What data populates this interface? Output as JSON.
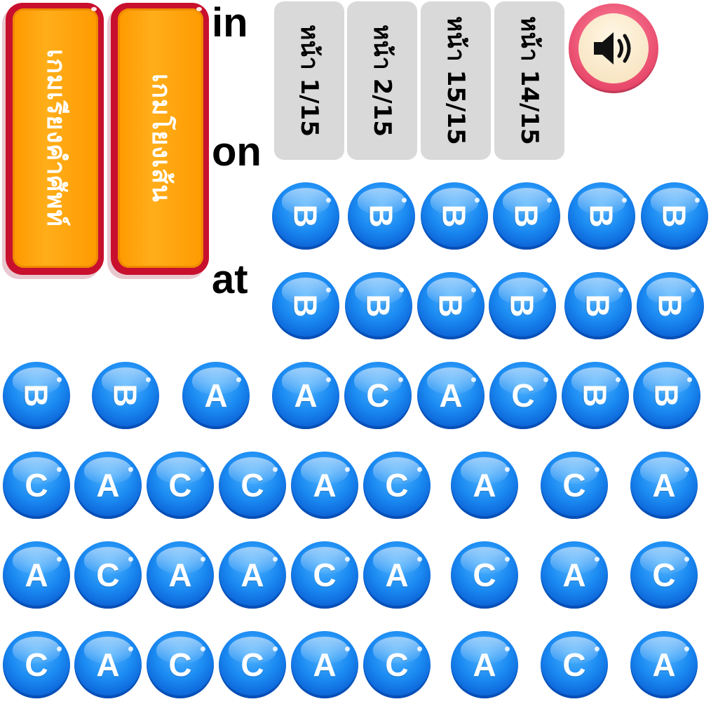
{
  "game_buttons": [
    {
      "label": "เกมเรียงคำศัพท์"
    },
    {
      "label": "เกมโยงเส้น"
    }
  ],
  "words": [
    "in",
    "on",
    "at"
  ],
  "page_tabs": [
    {
      "label": "หน้า 1/15"
    },
    {
      "label": "หน้า 2/15"
    },
    {
      "label": "หน้า 15/15"
    },
    {
      "label": "หน้า 14/15"
    }
  ],
  "sound_button": {
    "icon": "speaker-icon"
  },
  "ball_rows": [
    [
      "B",
      "B",
      "B",
      "B",
      "B",
      "B"
    ],
    [
      "B",
      "B",
      "B",
      "B",
      "B",
      "B"
    ],
    [
      "B",
      "B",
      "A",
      "A",
      "C",
      "A",
      "C",
      "B",
      "B"
    ],
    [
      "C",
      "A",
      "C",
      "C",
      "A",
      "C",
      "A",
      "C",
      "A"
    ],
    [
      "A",
      "C",
      "A",
      "A",
      "C",
      "A",
      "C",
      "A",
      "C"
    ],
    [
      "C",
      "A",
      "C",
      "C",
      "A",
      "C",
      "A",
      "C",
      "A"
    ]
  ],
  "colors": {
    "button_orange": "#ff9900",
    "button_border": "#c8102e",
    "tab_gray": "#d9d9d9",
    "ball_blue": "#1b8bf2",
    "sound_pink": "#e8486a"
  }
}
